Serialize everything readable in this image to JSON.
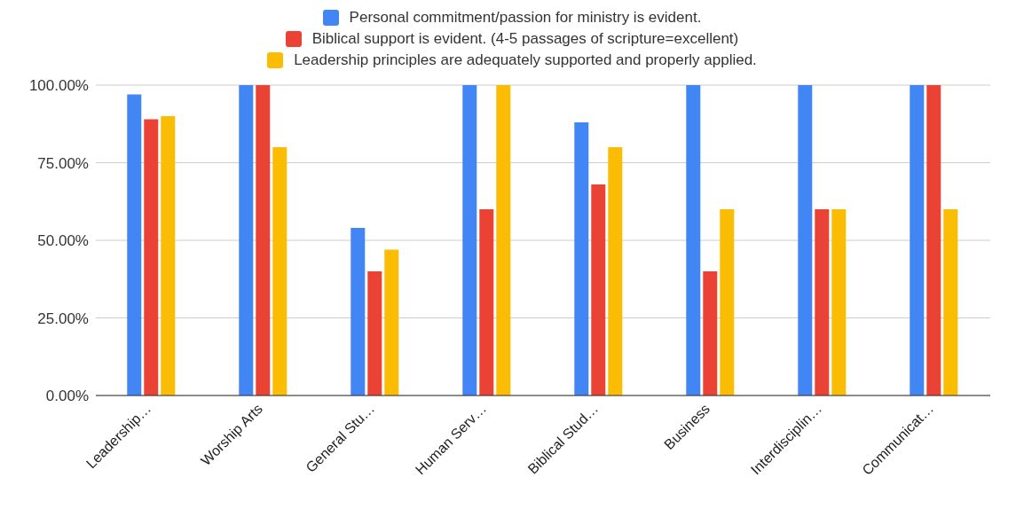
{
  "chart_data": {
    "type": "bar",
    "categories": [
      "Leadership…",
      "Worship Arts",
      "General Stu…",
      "Human Serv…",
      "Biblical Stud…",
      "Business",
      "Interdisciplin…",
      "Communicat…"
    ],
    "series": [
      {
        "name": "Personal commitment/passion for ministry is evident.",
        "color": "#4285f4",
        "values": [
          97,
          100,
          54,
          100,
          88,
          100,
          100,
          100
        ]
      },
      {
        "name": "Biblical support is evident. (4-5 passages of scripture=excellent)",
        "color": "#ea4335",
        "values": [
          89,
          100,
          40,
          60,
          68,
          40,
          60,
          100
        ]
      },
      {
        "name": "Leadership principles are adequately supported and properly applied.",
        "color": "#fbbc04",
        "values": [
          90,
          80,
          47,
          100,
          80,
          60,
          60,
          60
        ]
      }
    ],
    "ylim": [
      0,
      100
    ],
    "yticks": [
      {
        "value": 0,
        "label": "0.00%"
      },
      {
        "value": 25,
        "label": "25.00%"
      },
      {
        "value": 50,
        "label": "50.00%"
      },
      {
        "value": 75,
        "label": "75.00%"
      },
      {
        "value": 100,
        "label": "100.00%"
      }
    ],
    "grid": "y",
    "legend": "top"
  }
}
